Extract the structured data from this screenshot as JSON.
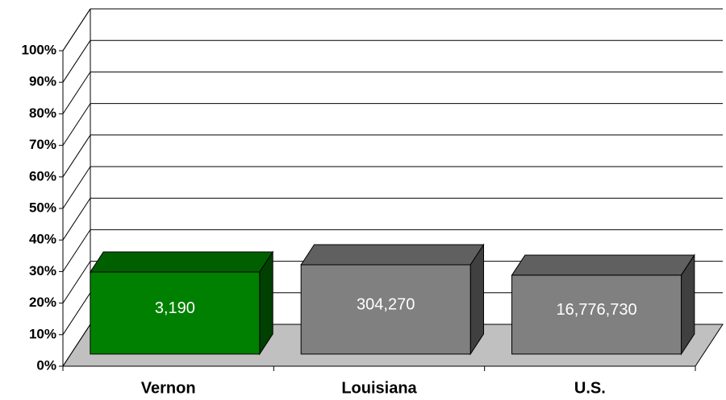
{
  "chart_data": {
    "type": "bar3d",
    "categories": [
      "Vernon",
      "Louisiana",
      "U.S."
    ],
    "values": [
      26,
      28.3,
      25
    ],
    "data_labels": [
      "3,190",
      "304,270",
      "16,776,730"
    ],
    "colors": [
      "#008000",
      "#808080",
      "#808080"
    ],
    "ylim": [
      0,
      100
    ],
    "yticks": [
      {
        "value": 0,
        "label": "0%"
      },
      {
        "value": 10,
        "label": "10%"
      },
      {
        "value": 20,
        "label": "20%"
      },
      {
        "value": 30,
        "label": "30%"
      },
      {
        "value": 40,
        "label": "40%"
      },
      {
        "value": 50,
        "label": "50%"
      },
      {
        "value": 60,
        "label": "60%"
      },
      {
        "value": 70,
        "label": "70%"
      },
      {
        "value": 80,
        "label": "80%"
      },
      {
        "value": 90,
        "label": "90%"
      },
      {
        "value": 100,
        "label": "100%"
      }
    ],
    "grid": true
  }
}
